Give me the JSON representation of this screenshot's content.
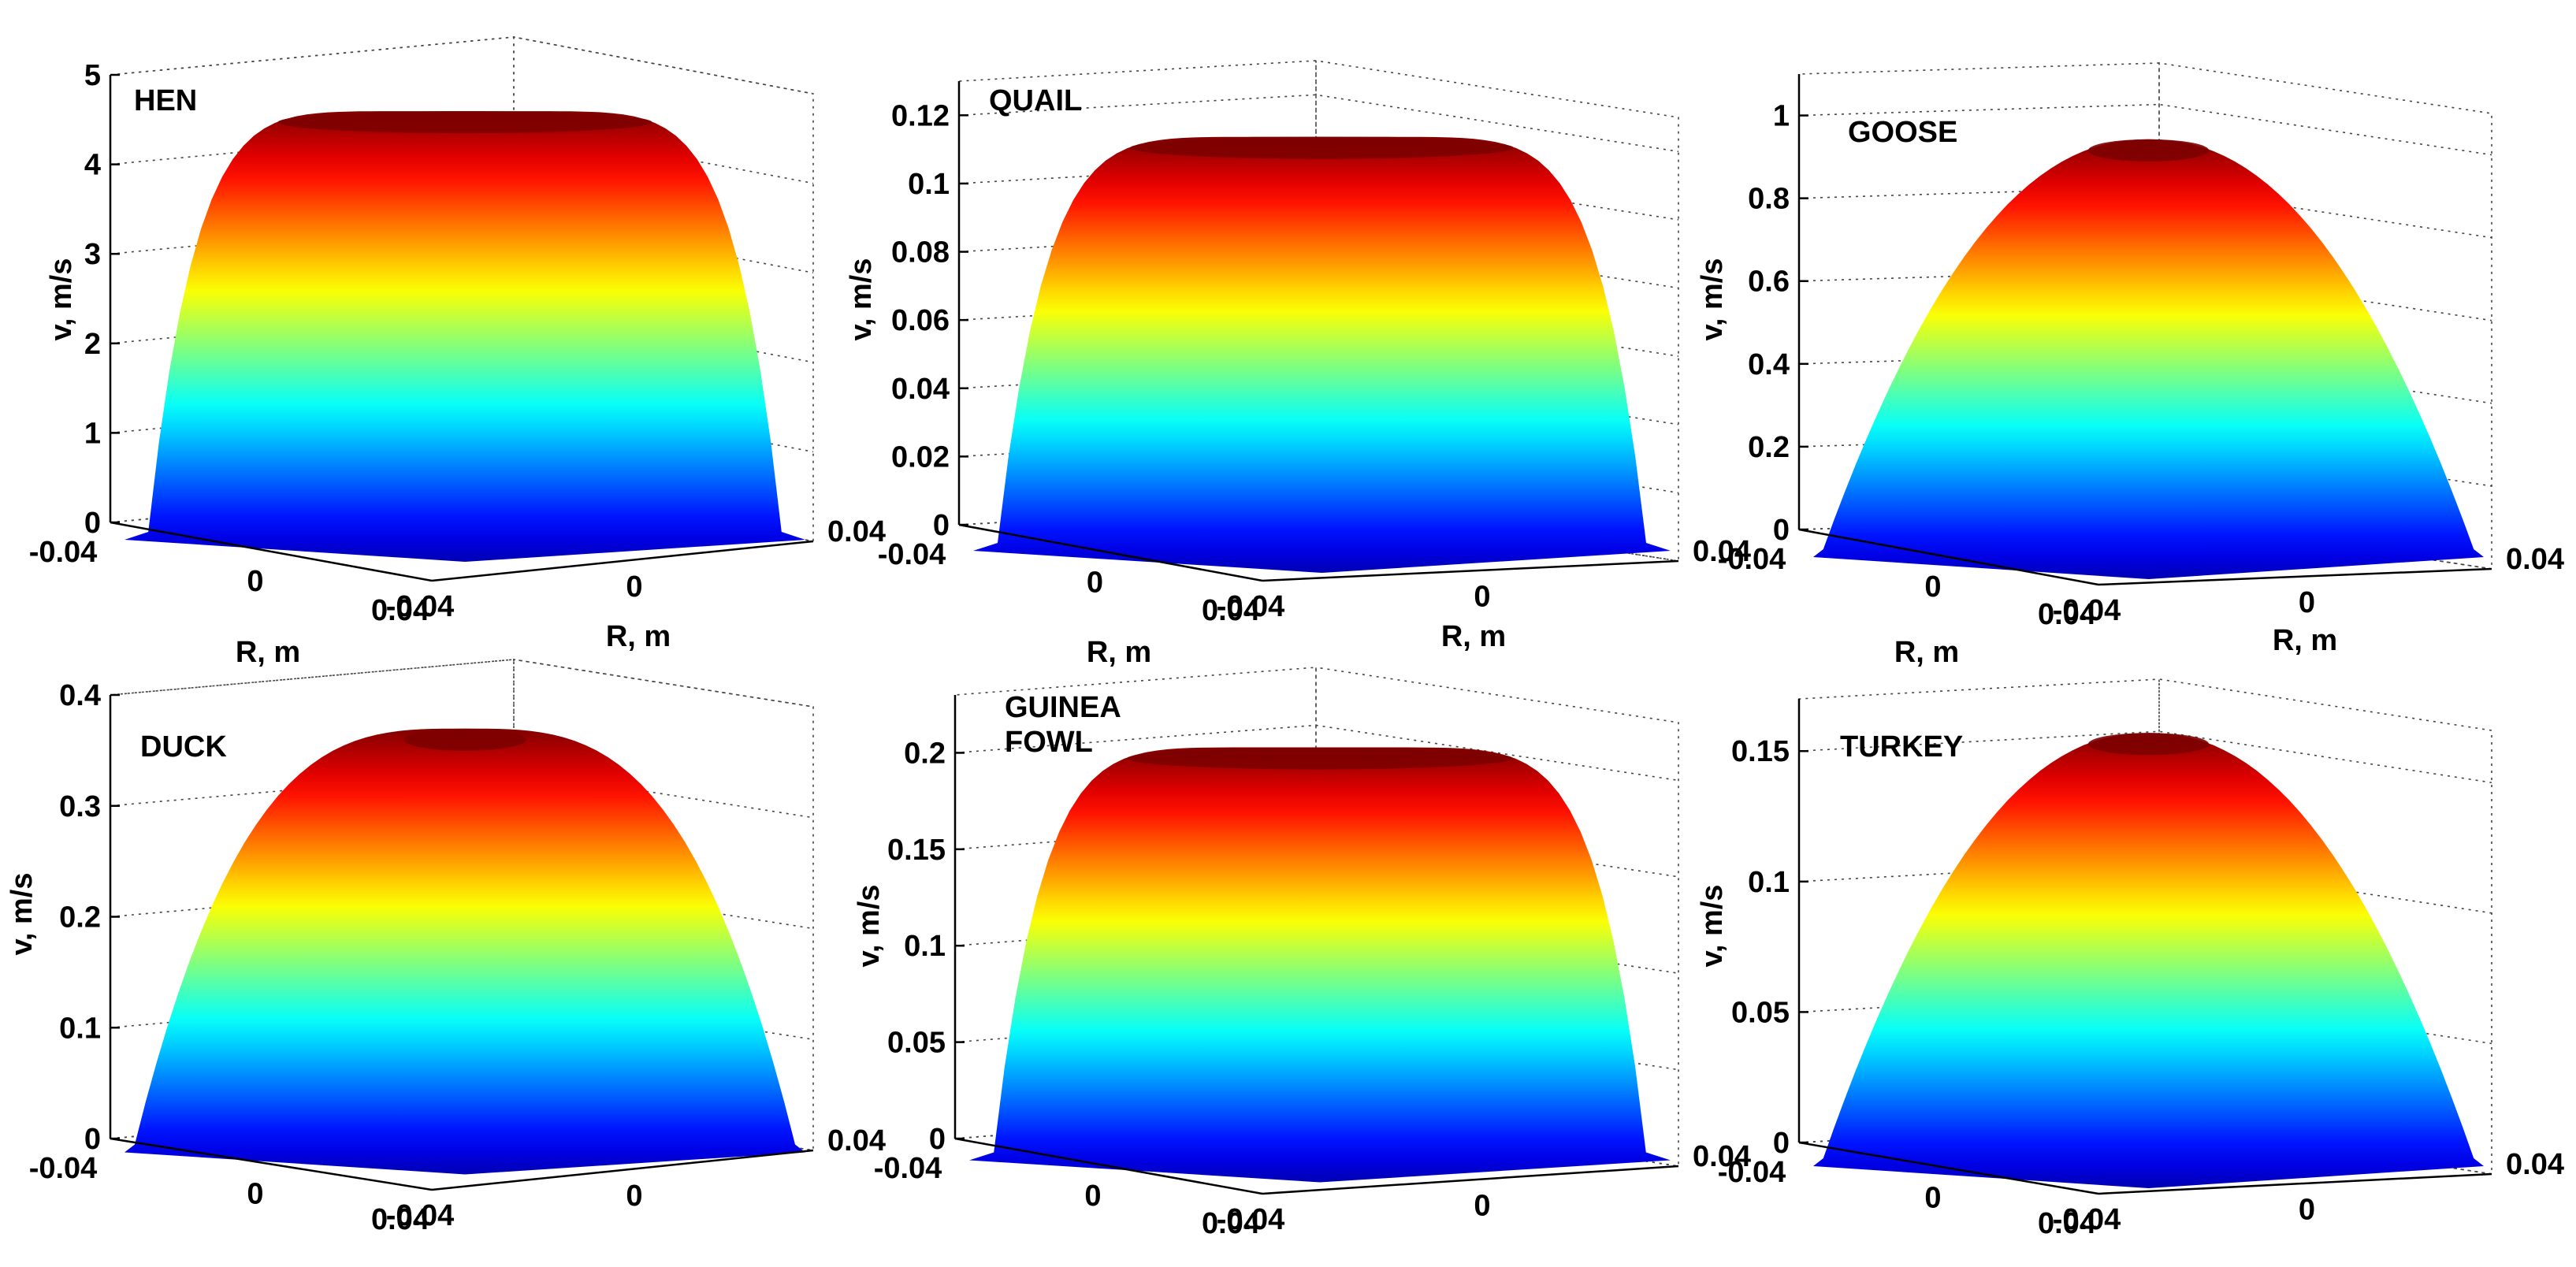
{
  "figure": {
    "type": "surface3d",
    "colormap": "jet"
  },
  "chart_data": [
    {
      "type": "surface",
      "title": "HEN",
      "zlabel": "v, m/s",
      "xlabel": "R, m",
      "ylabel": "R, m",
      "zlim": [
        0,
        5
      ],
      "zticks": [
        "0",
        "1",
        "2",
        "3",
        "4",
        "5"
      ],
      "xlim": [
        -0.04,
        0.04
      ],
      "xticks": [
        "-0.04",
        "0",
        "0.04"
      ],
      "ylim": [
        -0.04,
        0.04
      ],
      "yticks": [
        "-0.04",
        "0",
        "0.04"
      ],
      "peak": 4.7,
      "profile": "flat"
    },
    {
      "type": "surface",
      "title": "QUAIL",
      "zlabel": "v, m/s",
      "xlabel": "R, m",
      "ylabel": "R, m",
      "zlim": [
        0,
        0.13
      ],
      "zticks": [
        "0",
        "0.02",
        "0.04",
        "0.06",
        "0.08",
        "0.1",
        "0.12"
      ],
      "xlim": [
        -0.04,
        0.04
      ],
      "xticks": [
        "-0.04",
        "0",
        "0.04"
      ],
      "ylim": [
        -0.04,
        0.04
      ],
      "yticks": [
        "-0.04",
        "0",
        "0.04"
      ],
      "peak": 0.119,
      "profile": "flat"
    },
    {
      "type": "surface",
      "title": "GOOSE",
      "zlabel": "v, m/s",
      "xlabel": "R, m",
      "ylabel": "R, m",
      "zlim": [
        0,
        1.1
      ],
      "zticks": [
        "0",
        "0.2",
        "0.4",
        "0.6",
        "0.8",
        "1"
      ],
      "xlim": [
        -0.04,
        0.04
      ],
      "xticks": [
        "-0.04",
        "0",
        "0.04"
      ],
      "ylim": [
        -0.04,
        0.04
      ],
      "yticks": [
        "-0.04",
        "0",
        "0.04"
      ],
      "peak": 0.99,
      "profile": "parabolic"
    },
    {
      "type": "surface",
      "title": "DUCK",
      "zlabel": "v, m/s",
      "xlabel": "",
      "ylabel": "",
      "zlim": [
        0,
        0.4
      ],
      "zticks": [
        "0",
        "0.1",
        "0.2",
        "0.3",
        "0.4"
      ],
      "xlim": [
        -0.04,
        0.04
      ],
      "xticks": [
        "-0.04",
        "0",
        "0.04"
      ],
      "ylim": [
        -0.04,
        0.04
      ],
      "yticks": [
        "-0.04",
        "0",
        "0.04"
      ],
      "peak": 0.375,
      "profile": "medium"
    },
    {
      "type": "surface",
      "title": "GUINEA FOWL",
      "title_lines": [
        "GUINEA",
        "FOWL"
      ],
      "zlabel": "v, m/s",
      "xlabel": "",
      "ylabel": "",
      "zlim": [
        0,
        0.23
      ],
      "zticks": [
        "0",
        "0.05",
        "0.1",
        "0.15",
        "0.2"
      ],
      "xlim": [
        -0.04,
        0.04
      ],
      "xticks": [
        "-0.04",
        "0",
        "0.04"
      ],
      "ylim": [
        -0.04,
        0.04
      ],
      "yticks": [
        "-0.04",
        "0",
        "0.04"
      ],
      "peak": 0.21,
      "profile": "flat"
    },
    {
      "type": "surface",
      "title": "TURKEY",
      "zlabel": "v, m/s",
      "xlabel": "",
      "ylabel": "",
      "zlim": [
        0,
        0.17
      ],
      "zticks": [
        "0",
        "0.05",
        "0.1",
        "0.15"
      ],
      "xlim": [
        -0.04,
        0.04
      ],
      "xticks": [
        "-0.04",
        "0",
        "0.04"
      ],
      "ylim": [
        -0.04,
        0.04
      ],
      "yticks": [
        "-0.04",
        "0",
        "0.04"
      ],
      "peak": 0.163,
      "profile": "parabolic"
    }
  ]
}
